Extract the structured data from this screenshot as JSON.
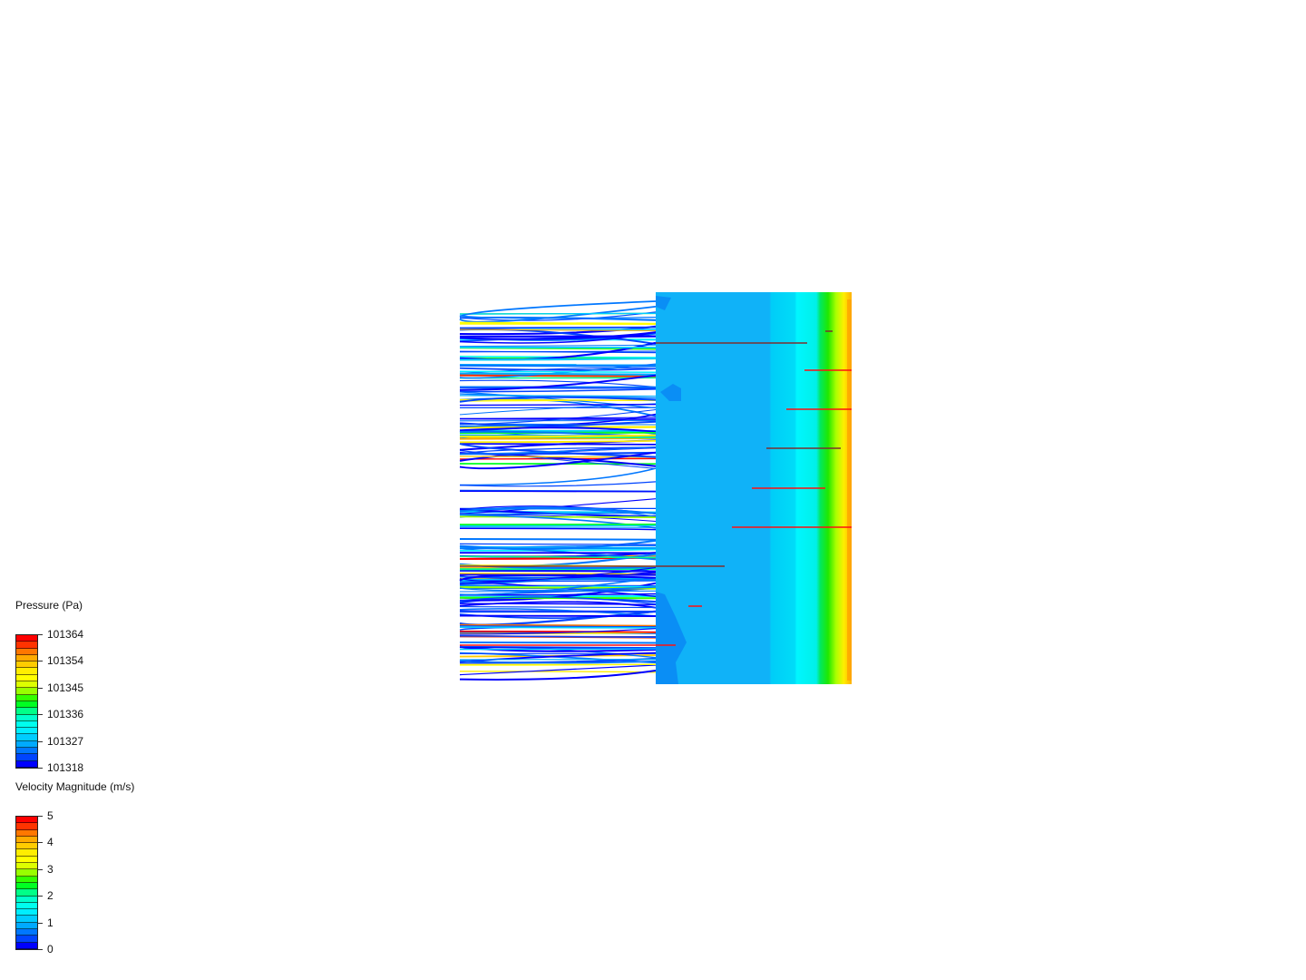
{
  "legends": [
    {
      "title": "Pressure (Pa)",
      "ticks": [
        "101364",
        "101354",
        "101345",
        "101336",
        "101327",
        "101318"
      ]
    },
    {
      "title": "Velocity Magnitude (m/s)",
      "ticks": [
        "5",
        "4",
        "3",
        "2",
        "1",
        "0"
      ]
    }
  ],
  "colormap": [
    "#ff0000",
    "#ff3300",
    "#ff7700",
    "#ffaa00",
    "#ffcc00",
    "#ffee00",
    "#ffff00",
    "#ddff00",
    "#99ff00",
    "#33ff00",
    "#00ff22",
    "#00ff88",
    "#00ffcc",
    "#00ffee",
    "#00eeff",
    "#00ccff",
    "#00aaff",
    "#0077ff",
    "#0044ff",
    "#0000ff"
  ],
  "scene": {
    "pressure_surface_colors": {
      "low": "#0fb0f8",
      "mid": "#00d4f8",
      "high_cyan": "#00f4ff",
      "green": "#00e040",
      "yellow": "#ffee00",
      "red": "#ff3000"
    }
  }
}
